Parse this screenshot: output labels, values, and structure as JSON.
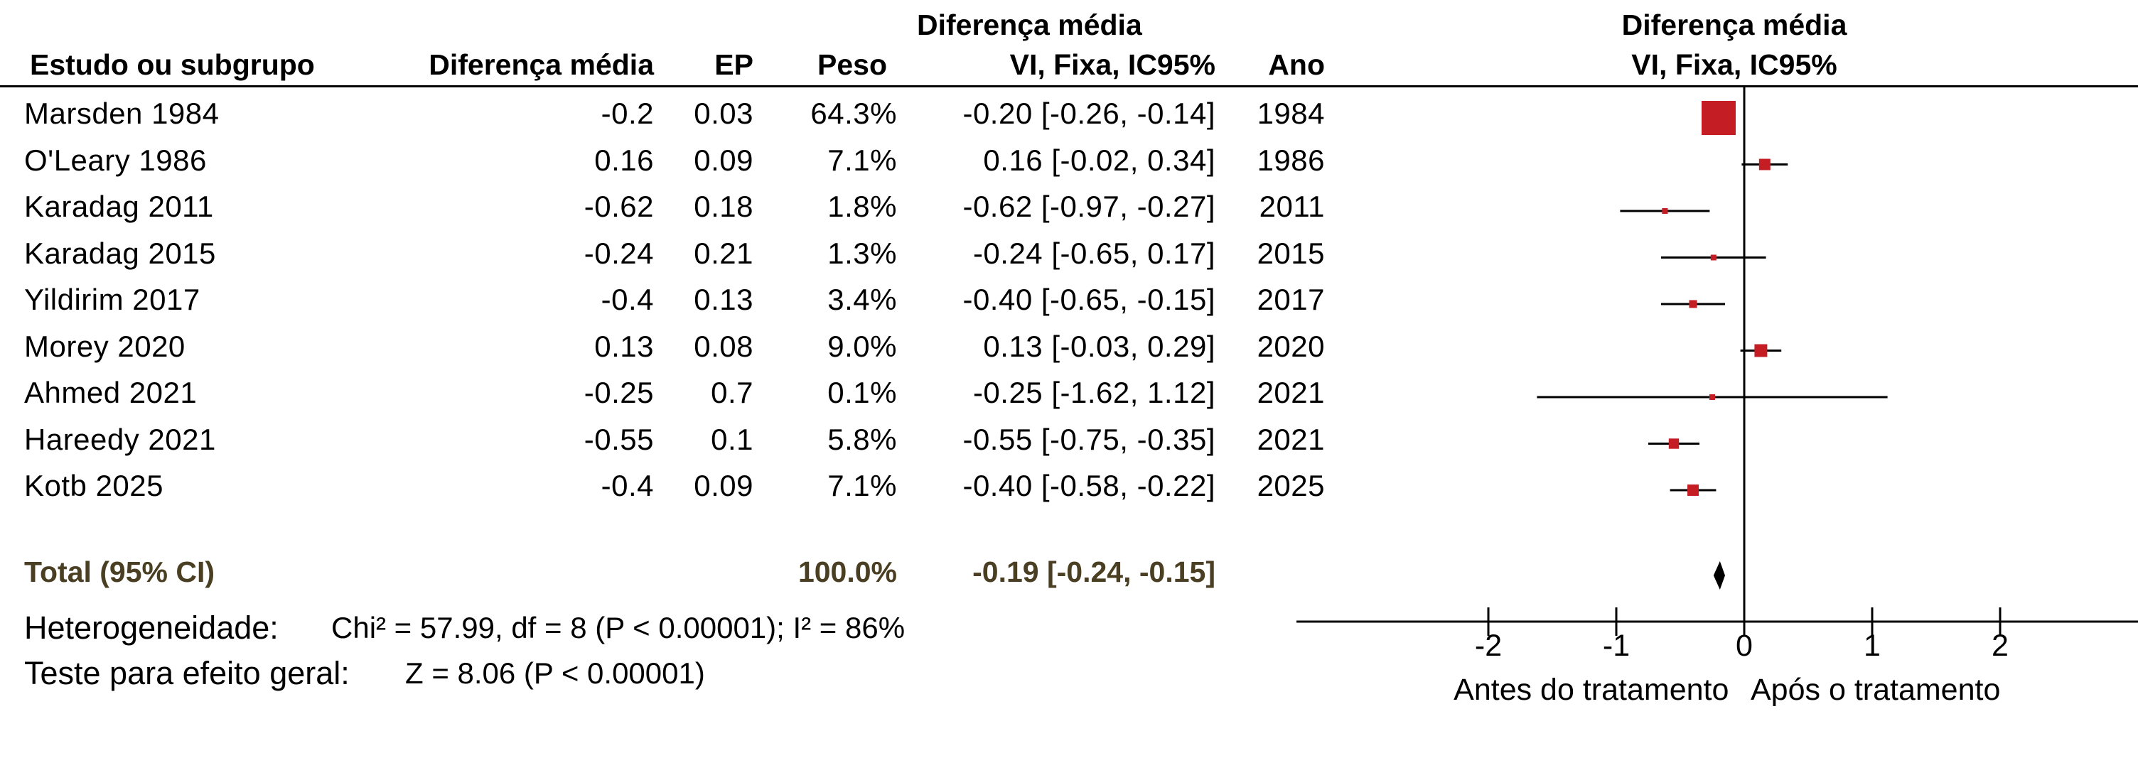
{
  "header": {
    "study": "Estudo ou subgrupo",
    "mean_diff": "Diferença média",
    "se": "EP",
    "weight": "Peso",
    "ci_line1": "Diferença média",
    "ci_line2": "VI, Fixa, IC95%",
    "year": "Ano",
    "plot_line1": "Diferença média",
    "plot_line2": "VI, Fixa, IC95%"
  },
  "rows": [
    {
      "study": "Marsden 1984",
      "md": "-0.2",
      "se": "0.03",
      "weight": "64.3%",
      "ci": "-0.20 [-0.26, -0.14]",
      "year": "1984"
    },
    {
      "study": "O'Leary 1986",
      "md": "0.16",
      "se": "0.09",
      "weight": "7.1%",
      "ci": "0.16 [-0.02, 0.34]",
      "year": "1986"
    },
    {
      "study": "Karadag 2011",
      "md": "-0.62",
      "se": "0.18",
      "weight": "1.8%",
      "ci": "-0.62 [-0.97, -0.27]",
      "year": "2011"
    },
    {
      "study": "Karadag 2015",
      "md": "-0.24",
      "se": "0.21",
      "weight": "1.3%",
      "ci": "-0.24 [-0.65, 0.17]",
      "year": "2015"
    },
    {
      "study": "Yildirim 2017",
      "md": "-0.4",
      "se": "0.13",
      "weight": "3.4%",
      "ci": "-0.40 [-0.65, -0.15]",
      "year": "2017"
    },
    {
      "study": "Morey 2020",
      "md": "0.13",
      "se": "0.08",
      "weight": "9.0%",
      "ci": "0.13 [-0.03, 0.29]",
      "year": "2020"
    },
    {
      "study": "Ahmed 2021",
      "md": "-0.25",
      "se": "0.7",
      "weight": "0.1%",
      "ci": "-0.25 [-1.62, 1.12]",
      "year": "2021"
    },
    {
      "study": "Hareedy 2021",
      "md": "-0.55",
      "se": "0.1",
      "weight": "5.8%",
      "ci": "-0.55 [-0.75, -0.35]",
      "year": "2021"
    },
    {
      "study": "Kotb 2025",
      "md": "-0.4",
      "se": "0.09",
      "weight": "7.1%",
      "ci": "-0.40 [-0.58, -0.22]",
      "year": "2025"
    }
  ],
  "total": {
    "label": "Total (95% CI)",
    "weight": "100.0%",
    "ci": "-0.19 [-0.24, -0.15]"
  },
  "footer": {
    "heterogeneity_label": "Heterogeneidade:",
    "heterogeneity_value": "Chi² = 57.99, df = 8 (P < 0.00001); I² = 86%",
    "overall_label": "Teste para efeito geral:",
    "overall_value": "Z = 8.06 (P < 0.00001)"
  },
  "colors": {
    "marker": "#c41e24",
    "line": "#000000",
    "total_text": "#4a3f22"
  },
  "chart_data": {
    "type": "forest",
    "xlim": [
      -3.0,
      3.0
    ],
    "xticks": [
      -2,
      -1,
      0,
      1,
      2
    ],
    "xtick_labels": [
      "-2",
      "-1",
      "0",
      "1",
      "2"
    ],
    "xlabel_left": "Antes do tratamento",
    "xlabel_right": "Após o tratamento",
    "studies": [
      {
        "name": "Marsden 1984",
        "estimate": -0.2,
        "lower": -0.26,
        "upper": -0.14,
        "weight": 64.3
      },
      {
        "name": "O'Leary 1986",
        "estimate": 0.16,
        "lower": -0.02,
        "upper": 0.34,
        "weight": 7.1
      },
      {
        "name": "Karadag 2011",
        "estimate": -0.62,
        "lower": -0.97,
        "upper": -0.27,
        "weight": 1.8
      },
      {
        "name": "Karadag 2015",
        "estimate": -0.24,
        "lower": -0.65,
        "upper": 0.17,
        "weight": 1.3
      },
      {
        "name": "Yildirim 2017",
        "estimate": -0.4,
        "lower": -0.65,
        "upper": -0.15,
        "weight": 3.4
      },
      {
        "name": "Morey 2020",
        "estimate": 0.13,
        "lower": -0.03,
        "upper": 0.29,
        "weight": 9.0
      },
      {
        "name": "Ahmed 2021",
        "estimate": -0.25,
        "lower": -1.62,
        "upper": 1.12,
        "weight": 0.1
      },
      {
        "name": "Hareedy 2021",
        "estimate": -0.55,
        "lower": -0.75,
        "upper": -0.35,
        "weight": 5.8
      },
      {
        "name": "Kotb 2025",
        "estimate": -0.4,
        "lower": -0.58,
        "upper": -0.22,
        "weight": 7.1
      }
    ],
    "pooled": {
      "estimate": -0.19,
      "lower": -0.24,
      "upper": -0.15
    }
  }
}
